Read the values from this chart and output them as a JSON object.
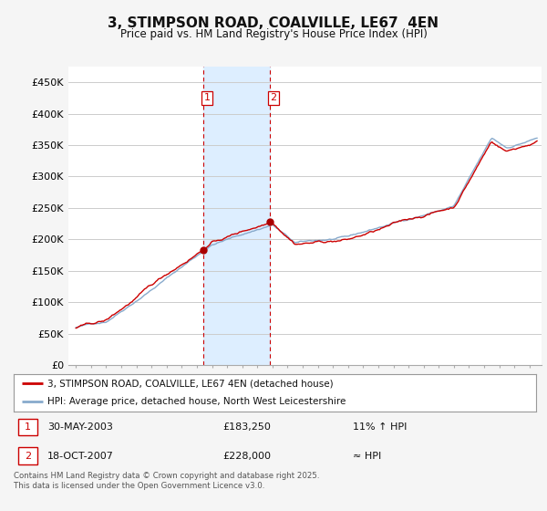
{
  "title": "3, STIMPSON ROAD, COALVILLE, LE67  4EN",
  "subtitle": "Price paid vs. HM Land Registry's House Price Index (HPI)",
  "background_color": "#f5f5f5",
  "plot_background": "#ffffff",
  "grid_color": "#cccccc",
  "ylim": [
    0,
    475000
  ],
  "yticks": [
    0,
    50000,
    100000,
    150000,
    200000,
    250000,
    300000,
    350000,
    400000,
    450000
  ],
  "ytick_labels": [
    "£0",
    "£50K",
    "£100K",
    "£150K",
    "£200K",
    "£250K",
    "£300K",
    "£350K",
    "£400K",
    "£450K"
  ],
  "sale1_date": 2003.41,
  "sale1_price": 183250,
  "sale2_date": 2007.8,
  "sale2_price": 228000,
  "line_color_red": "#cc0000",
  "line_color_blue": "#88aacc",
  "shade_color": "#ddeeff",
  "vline_color": "#cc0000",
  "marker_color": "#aa0000",
  "legend_label_red": "3, STIMPSON ROAD, COALVILLE, LE67 4EN (detached house)",
  "legend_label_blue": "HPI: Average price, detached house, North West Leicestershire",
  "table_row1": [
    "1",
    "30-MAY-2003",
    "£183,250",
    "11% ↑ HPI"
  ],
  "table_row2": [
    "2",
    "18-OCT-2007",
    "£228,000",
    "≈ HPI"
  ],
  "footer": "Contains HM Land Registry data © Crown copyright and database right 2025.\nThis data is licensed under the Open Government Licence v3.0.",
  "xmin": 1994.5,
  "xmax": 2025.8,
  "n_points": 370,
  "t_start": 1995.0,
  "t_end": 2025.5
}
